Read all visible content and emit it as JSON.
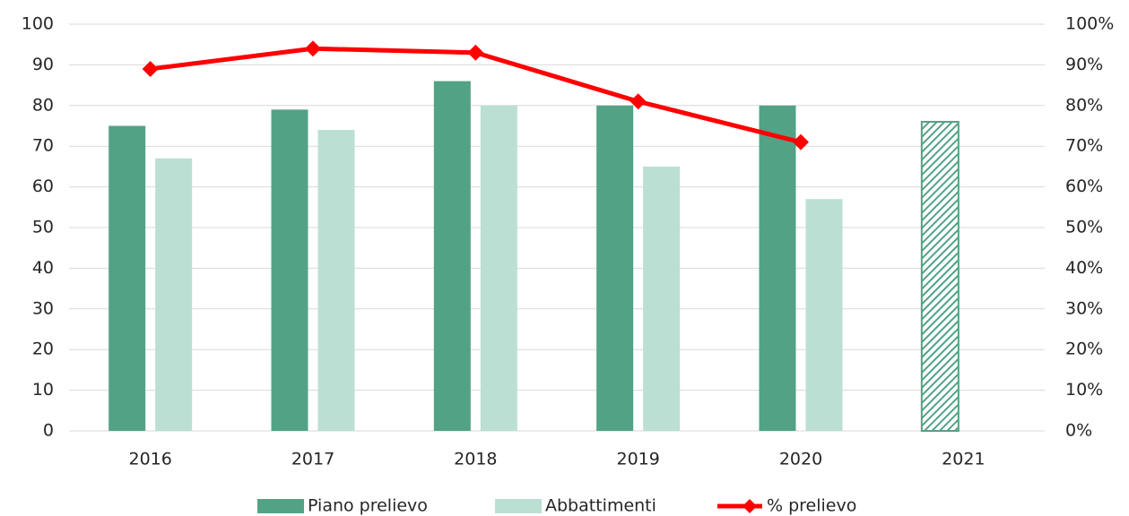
{
  "chart_data": {
    "type": "bar",
    "categories": [
      "2016",
      "2017",
      "2018",
      "2019",
      "2020",
      "2021"
    ],
    "series": [
      {
        "name": "Piano prelievo",
        "type": "bar",
        "color": "#52a385",
        "values": [
          75,
          79,
          86,
          80,
          80,
          76
        ],
        "hatch": [
          false,
          false,
          false,
          false,
          false,
          true
        ]
      },
      {
        "name": "Abbattimenti",
        "type": "bar",
        "color": "#bbdfd3",
        "values": [
          67,
          74,
          80,
          65,
          57,
          null
        ]
      },
      {
        "name": "% prelievo",
        "type": "line",
        "axis": "y2",
        "color": "#ff0000",
        "values": [
          89,
          94,
          93,
          81,
          71,
          null
        ]
      }
    ],
    "ylim": [
      0,
      100
    ],
    "yticks": [
      0,
      10,
      20,
      30,
      40,
      50,
      60,
      70,
      80,
      90,
      100
    ],
    "y2lim": [
      0,
      100
    ],
    "y2ticks": [
      {
        "value": 0,
        "label": "0%"
      },
      {
        "value": 10,
        "label": "10%"
      },
      {
        "value": 20,
        "label": "20%"
      },
      {
        "value": 30,
        "label": "30%"
      },
      {
        "value": 40,
        "label": "40%"
      },
      {
        "value": 50,
        "label": "50%"
      },
      {
        "value": 60,
        "label": "60%"
      },
      {
        "value": 70,
        "label": "70%"
      },
      {
        "value": 80,
        "label": "80%"
      },
      {
        "value": 90,
        "label": "90%"
      },
      {
        "value": 100,
        "label": "100%"
      }
    ],
    "grid": true,
    "legend": "bottom"
  }
}
